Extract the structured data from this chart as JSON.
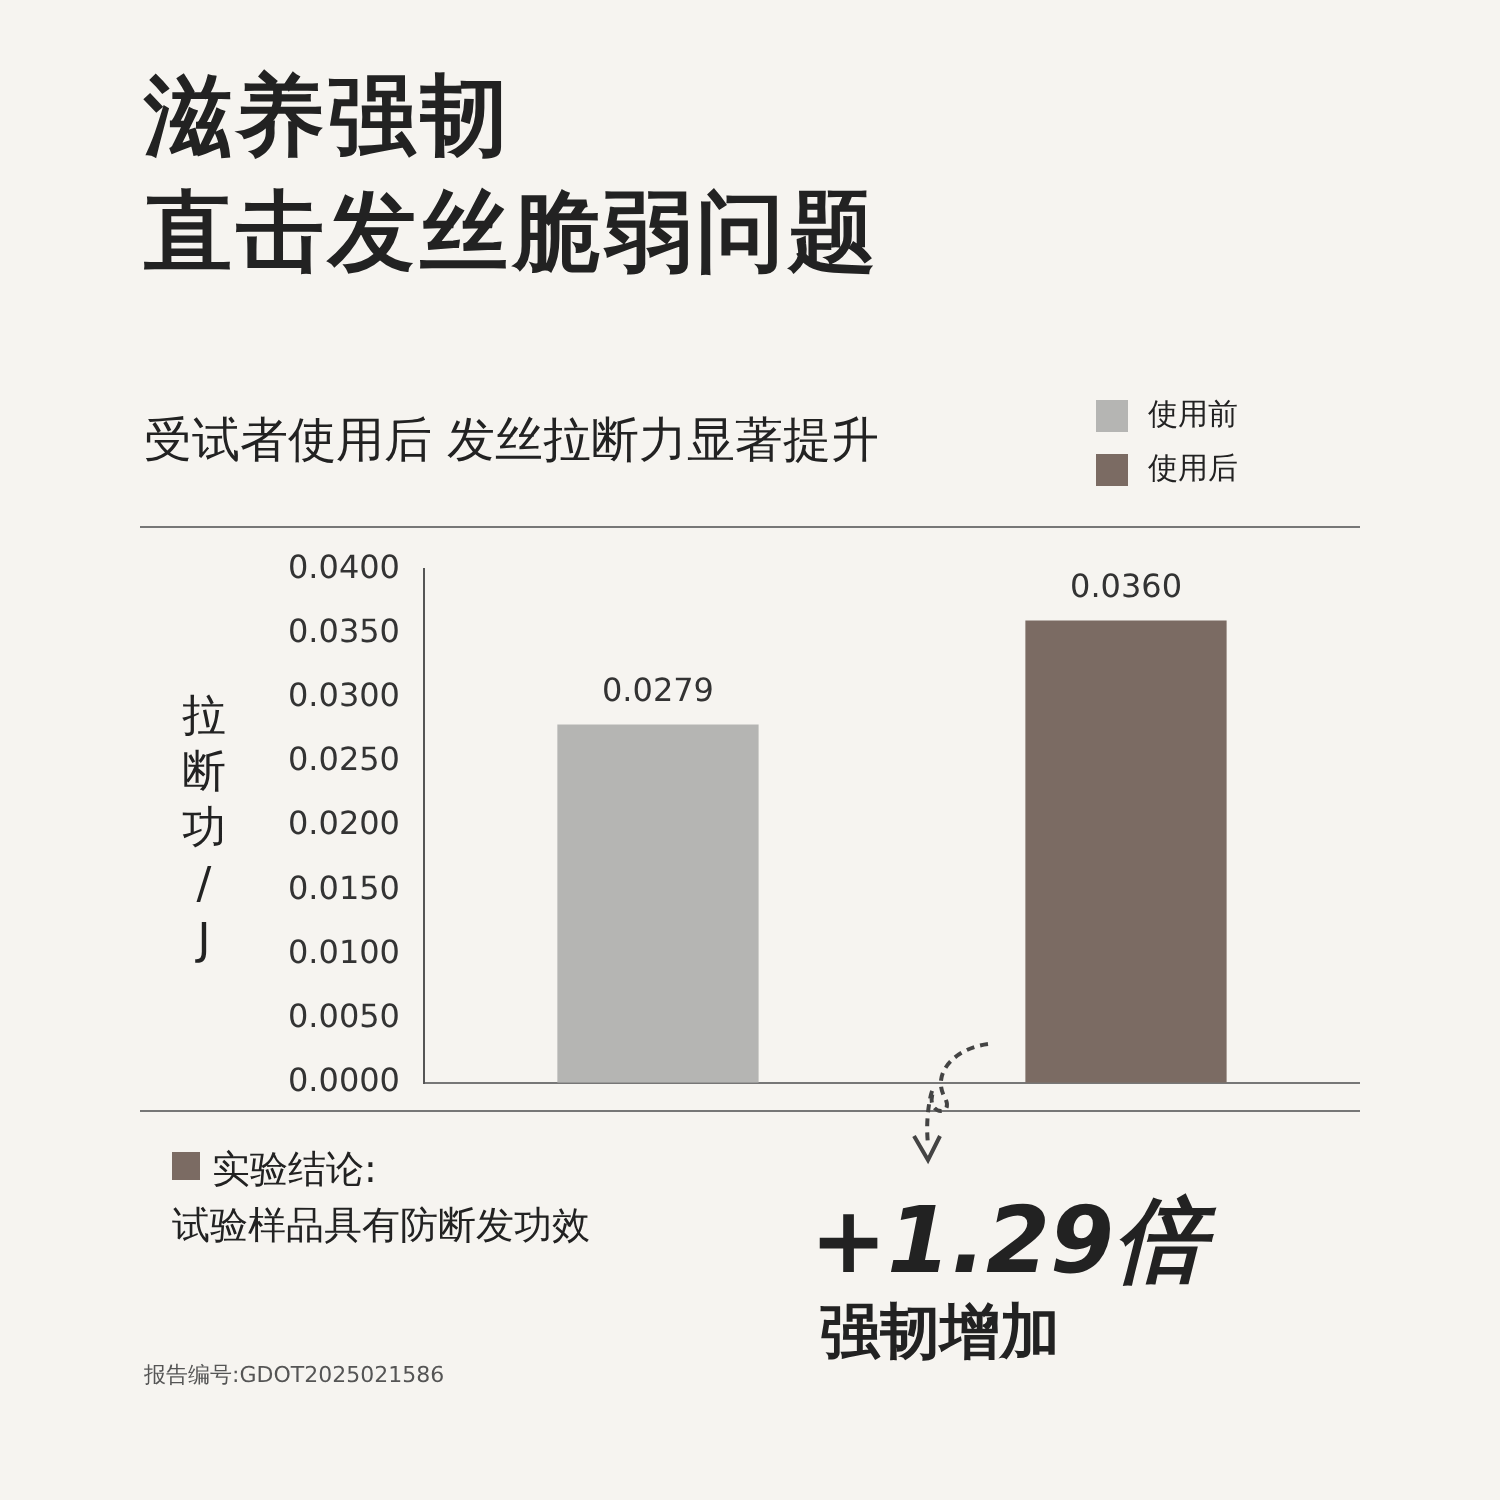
{
  "chart_data": {
    "type": "bar",
    "title": "滋养强韧直击发丝脆弱问题",
    "subtitle": "受试者使用后 发丝拉断力显著提升",
    "ylabel": "拉断功/J",
    "categories": [
      null,
      null
    ],
    "series": [
      {
        "name": "使用前",
        "color": "#b5b5b3",
        "values": [
          0.0279,
          null
        ],
        "value_labels": [
          "0.0279",
          null
        ]
      },
      {
        "name": "使用后",
        "color": "#7b6b63",
        "values": [
          null,
          0.036
        ],
        "value_labels": [
          null,
          "0.0360"
        ]
      }
    ],
    "ylim": [
      0,
      0.04
    ],
    "yticks": [
      {
        "value": 0,
        "label": "0.0000"
      },
      {
        "value": 0.005,
        "label": "0.0050"
      },
      {
        "value": 0.01,
        "label": "0.0100"
      },
      {
        "value": 0.015,
        "label": "0.0150"
      },
      {
        "value": 0.02,
        "label": "0.0200"
      },
      {
        "value": 0.025,
        "label": "0.0250"
      },
      {
        "value": 0.03,
        "label": "0.0300"
      },
      {
        "value": 0.035,
        "label": "0.0350"
      },
      {
        "value": 0.04,
        "label": "0.0400"
      }
    ],
    "tick_labels": "y",
    "grid": false,
    "legend": "top right",
    "annotations": [
      "实验结论:",
      "试验样品具有防断发功效",
      "+1.29倍",
      "强韧增加",
      "报告编号:GDOT2025021586"
    ]
  }
}
